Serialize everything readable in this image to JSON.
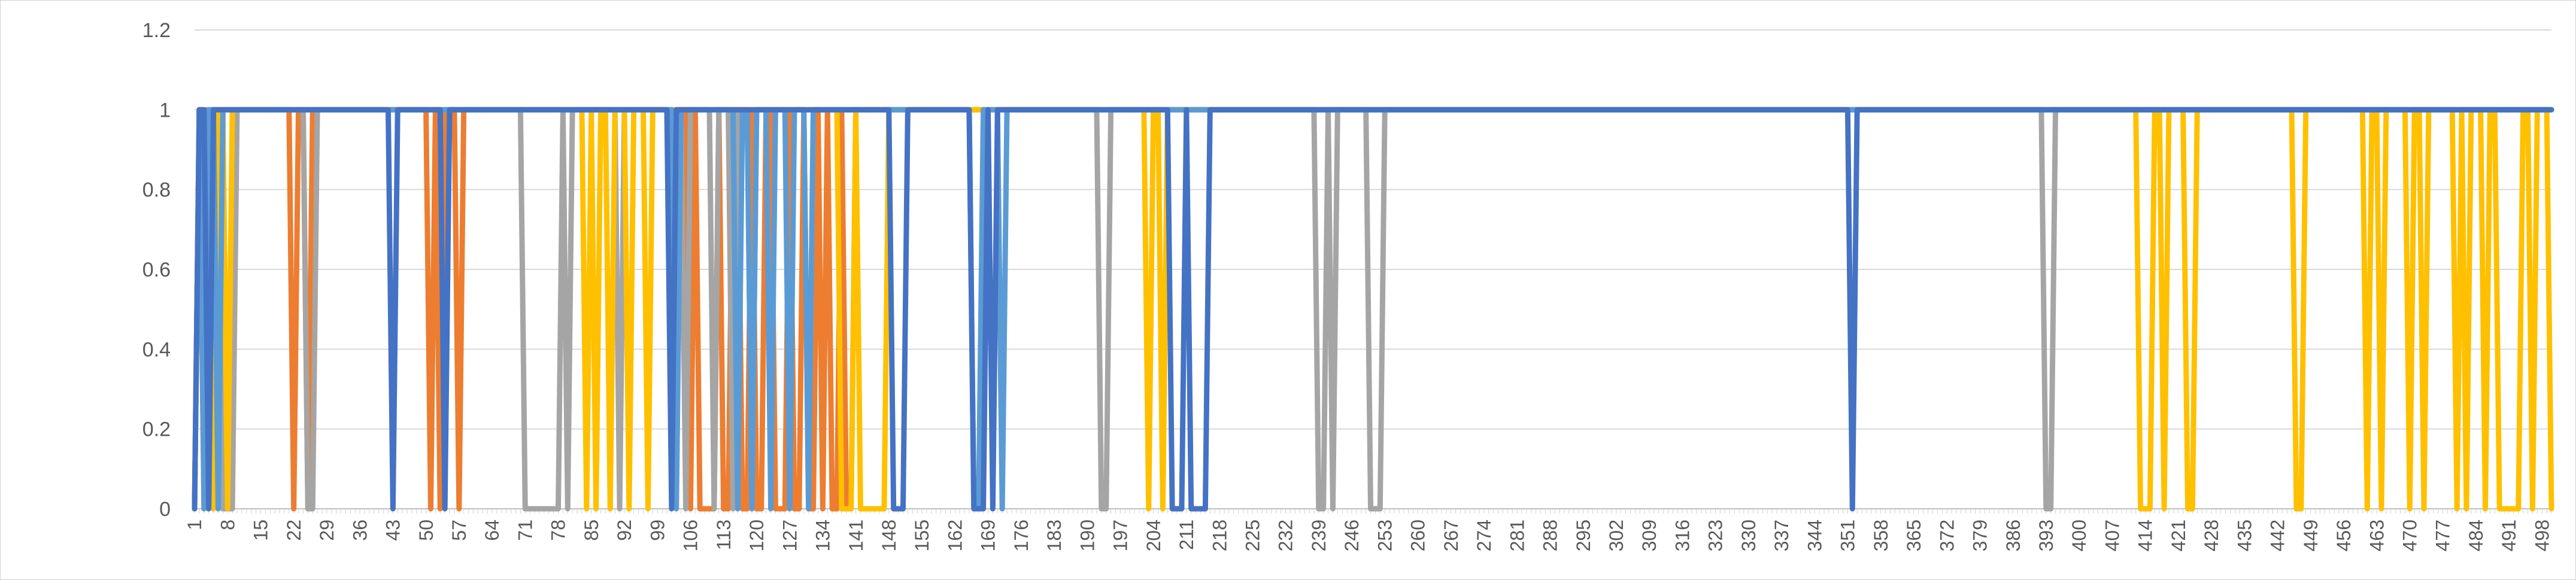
{
  "chart_data": {
    "type": "line",
    "title": "",
    "xlabel": "",
    "ylabel": "",
    "ylim": [
      0,
      1.2
    ],
    "yticks": [
      "0",
      "0.2",
      "0.4",
      "0.6",
      "0.8",
      "1",
      "1.2"
    ],
    "xlim": [
      1,
      500
    ],
    "xticks": [
      "1",
      "8",
      "15",
      "22",
      "29",
      "36",
      "43",
      "50",
      "57",
      "64",
      "71",
      "78",
      "85",
      "92",
      "99",
      "106",
      "113",
      "120",
      "127",
      "134",
      "141",
      "148",
      "155",
      "162",
      "169",
      "176",
      "183",
      "190",
      "197",
      "204",
      "211",
      "218",
      "225",
      "232",
      "239",
      "246",
      "253",
      "260",
      "267",
      "274",
      "281",
      "288",
      "295",
      "302",
      "309",
      "316",
      "323",
      "330",
      "337",
      "344",
      "351",
      "358",
      "365",
      "372",
      "379",
      "386",
      "393",
      "400",
      "407",
      "414",
      "421",
      "428",
      "435",
      "442",
      "449",
      "456",
      "463",
      "470",
      "477",
      "484",
      "491",
      "498"
    ],
    "grid": true,
    "legend": "none",
    "series": [
      {
        "color": "#ED7D31",
        "default": 1,
        "zero_runs": [
          [
            1,
            1
          ],
          [
            22,
            22
          ],
          [
            25,
            25
          ],
          [
            51,
            51
          ],
          [
            53,
            53
          ],
          [
            57,
            57
          ],
          [
            106,
            106
          ],
          [
            108,
            111
          ],
          [
            113,
            114
          ],
          [
            117,
            118
          ],
          [
            120,
            121
          ],
          [
            124,
            126
          ],
          [
            128,
            129
          ],
          [
            131,
            132
          ],
          [
            134,
            134
          ],
          [
            136,
            137
          ],
          [
            139,
            140
          ]
        ]
      },
      {
        "color": "#A5A5A5",
        "default": 1,
        "zero_runs": [
          [
            1,
            1
          ],
          [
            4,
            4
          ],
          [
            7,
            9
          ],
          [
            25,
            26
          ],
          [
            71,
            78
          ],
          [
            80,
            80
          ],
          [
            91,
            91
          ],
          [
            105,
            105
          ],
          [
            111,
            111
          ],
          [
            115,
            115
          ],
          [
            119,
            119
          ],
          [
            193,
            194
          ],
          [
            239,
            240
          ],
          [
            242,
            242
          ],
          [
            250,
            252
          ],
          [
            393,
            394
          ]
        ]
      },
      {
        "color": "#FFC000",
        "default": 1,
        "zero_runs": [
          [
            1,
            1
          ],
          [
            3,
            3
          ],
          [
            5,
            5
          ],
          [
            8,
            8
          ],
          [
            84,
            84
          ],
          [
            86,
            86
          ],
          [
            89,
            89
          ],
          [
            93,
            93
          ],
          [
            97,
            97
          ],
          [
            131,
            131
          ],
          [
            138,
            140
          ],
          [
            142,
            147
          ],
          [
            203,
            203
          ],
          [
            206,
            206
          ],
          [
            413,
            415
          ],
          [
            418,
            418
          ],
          [
            423,
            424
          ],
          [
            446,
            447
          ],
          [
            461,
            461
          ],
          [
            464,
            464
          ],
          [
            470,
            470
          ],
          [
            473,
            473
          ],
          [
            480,
            480
          ],
          [
            482,
            482
          ],
          [
            486,
            486
          ],
          [
            489,
            493
          ],
          [
            496,
            496
          ],
          [
            500,
            500
          ]
        ]
      },
      {
        "color": "#5B9BD5",
        "default": 1,
        "zero_runs": [
          [
            1,
            1
          ],
          [
            3,
            3
          ],
          [
            6,
            6
          ],
          [
            103,
            103
          ],
          [
            116,
            116
          ],
          [
            119,
            119
          ],
          [
            123,
            123
          ],
          [
            127,
            127
          ],
          [
            131,
            131
          ],
          [
            166,
            167
          ],
          [
            172,
            172
          ]
        ]
      },
      {
        "color": "#4472C4",
        "default": 1,
        "zero_runs": [
          [
            1,
            1
          ],
          [
            4,
            4
          ],
          [
            43,
            43
          ],
          [
            54,
            54
          ],
          [
            102,
            102
          ],
          [
            149,
            151
          ],
          [
            166,
            168
          ],
          [
            170,
            170
          ],
          [
            208,
            210
          ],
          [
            212,
            215
          ],
          [
            352,
            352
          ]
        ]
      }
    ]
  }
}
